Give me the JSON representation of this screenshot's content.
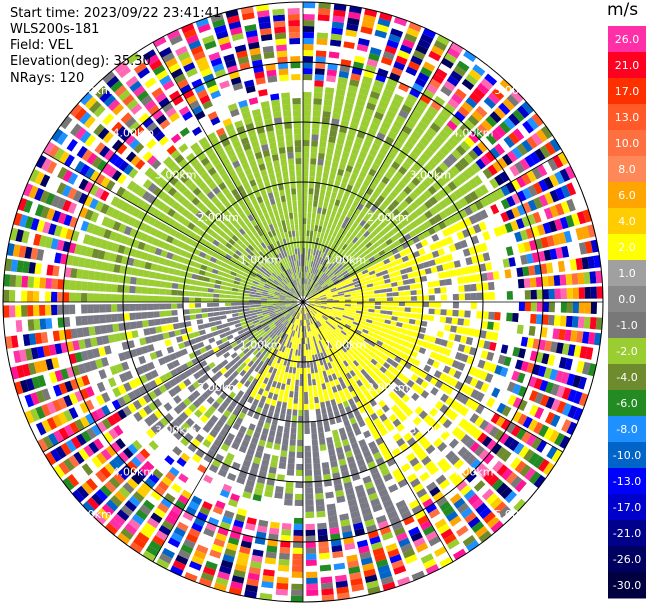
{
  "header": {
    "start_time": "Start time: 2023/09/22 23:41:41",
    "station": "WLS200s-181",
    "field": "Field: VEL",
    "elevation": "Elevation(deg): 35.30",
    "nrays": "NRays: 120"
  },
  "chart_data": {
    "type": "heatmap",
    "projection": "polar PPI",
    "field": "VEL",
    "n_rays": 120,
    "range_rings_km": [
      1.0,
      2.0,
      3.0,
      4.0,
      5.0
    ],
    "range_ring_labels": [
      "1.00km",
      "2.00km",
      "3.00km",
      "4.00km",
      "5.00km"
    ],
    "colorbar": {
      "unit": "m/s",
      "tick_labels": [
        "26.0",
        "21.0",
        "17.0",
        "13.0",
        "10.0",
        "8.0",
        "6.0",
        "4.0",
        "2.0",
        "1.0",
        "0.0",
        "-1.0",
        "-2.0",
        "-4.0",
        "-6.0",
        "-8.0",
        "-10.0",
        "-13.0",
        "-17.0",
        "-21.0",
        "-26.0",
        "-30.0"
      ],
      "colors": [
        "#ff2fa8",
        "#ff0020",
        "#ff3000",
        "#ff5a28",
        "#ff7040",
        "#ff8858",
        "#ffa500",
        "#ffcc00",
        "#ffff00",
        "#a0a0a0",
        "#888888",
        "#787878",
        "#9acd32",
        "#6e8b2e",
        "#228b22",
        "#1e90ff",
        "#0064c8",
        "#0000ff",
        "#0000cd",
        "#00008b",
        "#000060",
        "#000040"
      ]
    },
    "inner_region": {
      "north_west": "green (approaching, -1 to -2 m/s)",
      "south_east": "yellow (receding, 1 to 2 m/s)",
      "other": "gray (near 0 m/s)"
    },
    "outer_region": "noise (all colors) beyond about 3.5 km"
  }
}
